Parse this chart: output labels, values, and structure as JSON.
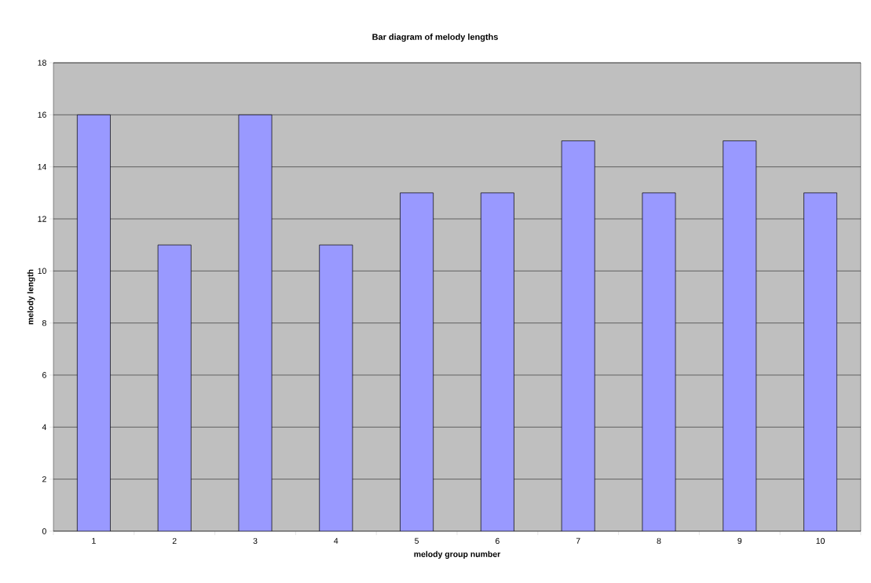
{
  "chart_data": {
    "type": "bar",
    "title": "Bar diagram of melody lengths",
    "xlabel": "melody group number",
    "ylabel": "melody length",
    "categories": [
      "1",
      "2",
      "3",
      "4",
      "5",
      "6",
      "7",
      "8",
      "9",
      "10"
    ],
    "values": [
      16,
      11,
      16,
      11,
      13,
      13,
      15,
      13,
      15,
      13
    ],
    "color": "#9999ff",
    "ylim": [
      0,
      18
    ],
    "yticks": [
      0,
      2,
      4,
      6,
      8,
      10,
      12,
      14,
      16,
      18
    ],
    "grid": "y"
  }
}
